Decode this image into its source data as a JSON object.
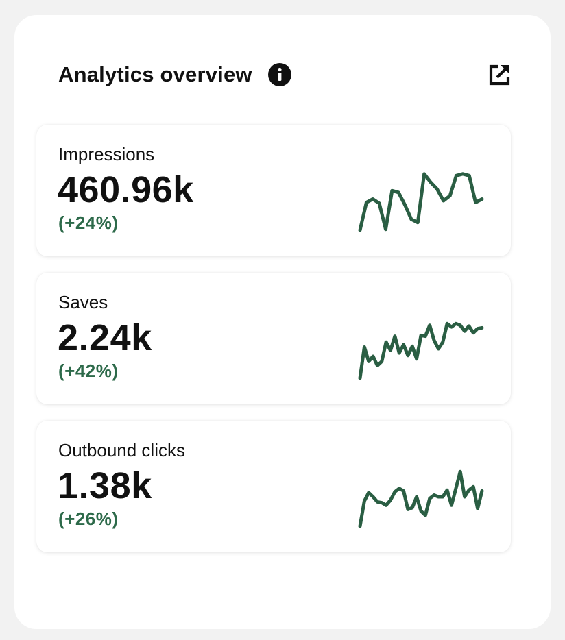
{
  "panel": {
    "title": "Analytics overview",
    "info_icon": "info-icon",
    "open_icon": "external-link-icon"
  },
  "metrics": [
    {
      "label": "Impressions",
      "value": "460.96k",
      "change": "(+24%)",
      "trend": [
        5,
        38,
        42,
        37,
        6,
        52,
        50,
        35,
        18,
        14,
        72,
        62,
        54,
        40,
        46,
        70,
        72,
        70,
        38,
        42
      ]
    },
    {
      "label": "Saves",
      "value": "2.24k",
      "change": "(+42%)",
      "trend": [
        5,
        42,
        25,
        31,
        20,
        25,
        48,
        38,
        55,
        35,
        45,
        32,
        43,
        28,
        56,
        55,
        68,
        50,
        40,
        48,
        70,
        66,
        70,
        68,
        61,
        67,
        59,
        64,
        65
      ]
    },
    {
      "label": "Outbound clicks",
      "value": "1.38k",
      "change": "(+26%)",
      "trend": [
        5,
        35,
        45,
        40,
        34,
        33,
        30,
        36,
        46,
        50,
        47,
        25,
        27,
        40,
        23,
        18,
        38,
        42,
        40,
        40,
        48,
        30,
        50,
        70,
        40,
        48,
        52,
        26,
        47
      ]
    }
  ],
  "colors": {
    "accent": "#2d6a4a",
    "sparkline": "#2a5e43",
    "text": "#111111",
    "background": "#f2f2f2",
    "card": "#ffffff"
  }
}
